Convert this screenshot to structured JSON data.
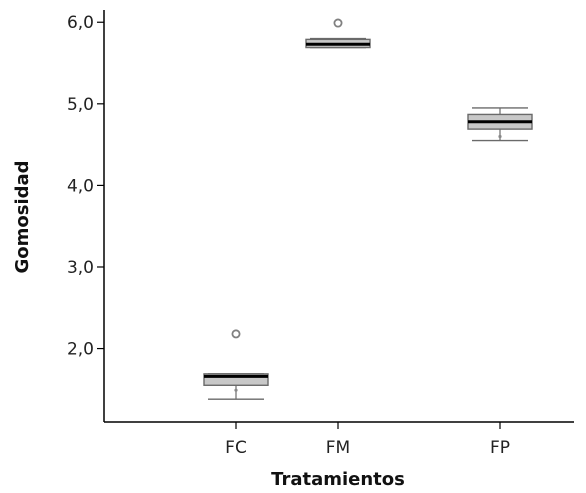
{
  "chart_data": {
    "type": "boxplot",
    "title": "",
    "xlabel": "Tratamientos",
    "ylabel": "Gomosidad",
    "ylim": [
      1.1,
      6.15
    ],
    "yticks": [
      {
        "value": 2.0,
        "label": "2,0"
      },
      {
        "value": 3.0,
        "label": "3,0"
      },
      {
        "value": 4.0,
        "label": "4,0"
      },
      {
        "value": 5.0,
        "label": "5,0"
      },
      {
        "value": 6.0,
        "label": "6,0"
      }
    ],
    "categories": [
      "FC",
      "FM",
      "FP"
    ],
    "boxes": [
      {
        "category": "FC",
        "whisker_low": 1.38,
        "q1": 1.55,
        "median": 1.66,
        "q3": 1.69,
        "whisker_high": 1.69,
        "mean_marker": 1.49,
        "outliers": [
          2.18
        ]
      },
      {
        "category": "FM",
        "whisker_low": 5.69,
        "q1": 5.69,
        "median": 5.73,
        "q3": 5.79,
        "whisker_high": 5.8,
        "mean_marker": null,
        "outliers": [
          5.99
        ]
      },
      {
        "category": "FP",
        "whisker_low": 4.55,
        "q1": 4.69,
        "median": 4.78,
        "q3": 4.87,
        "whisker_high": 4.95,
        "mean_marker": 4.6,
        "outliers": []
      }
    ],
    "grid": false,
    "colors": {
      "box_fill": "#c8c8c8",
      "box_stroke": "#6a6a6a",
      "median": "#000000",
      "axis": "#000000",
      "whisker": "#6a6a6a",
      "outlier": "#808080"
    }
  }
}
